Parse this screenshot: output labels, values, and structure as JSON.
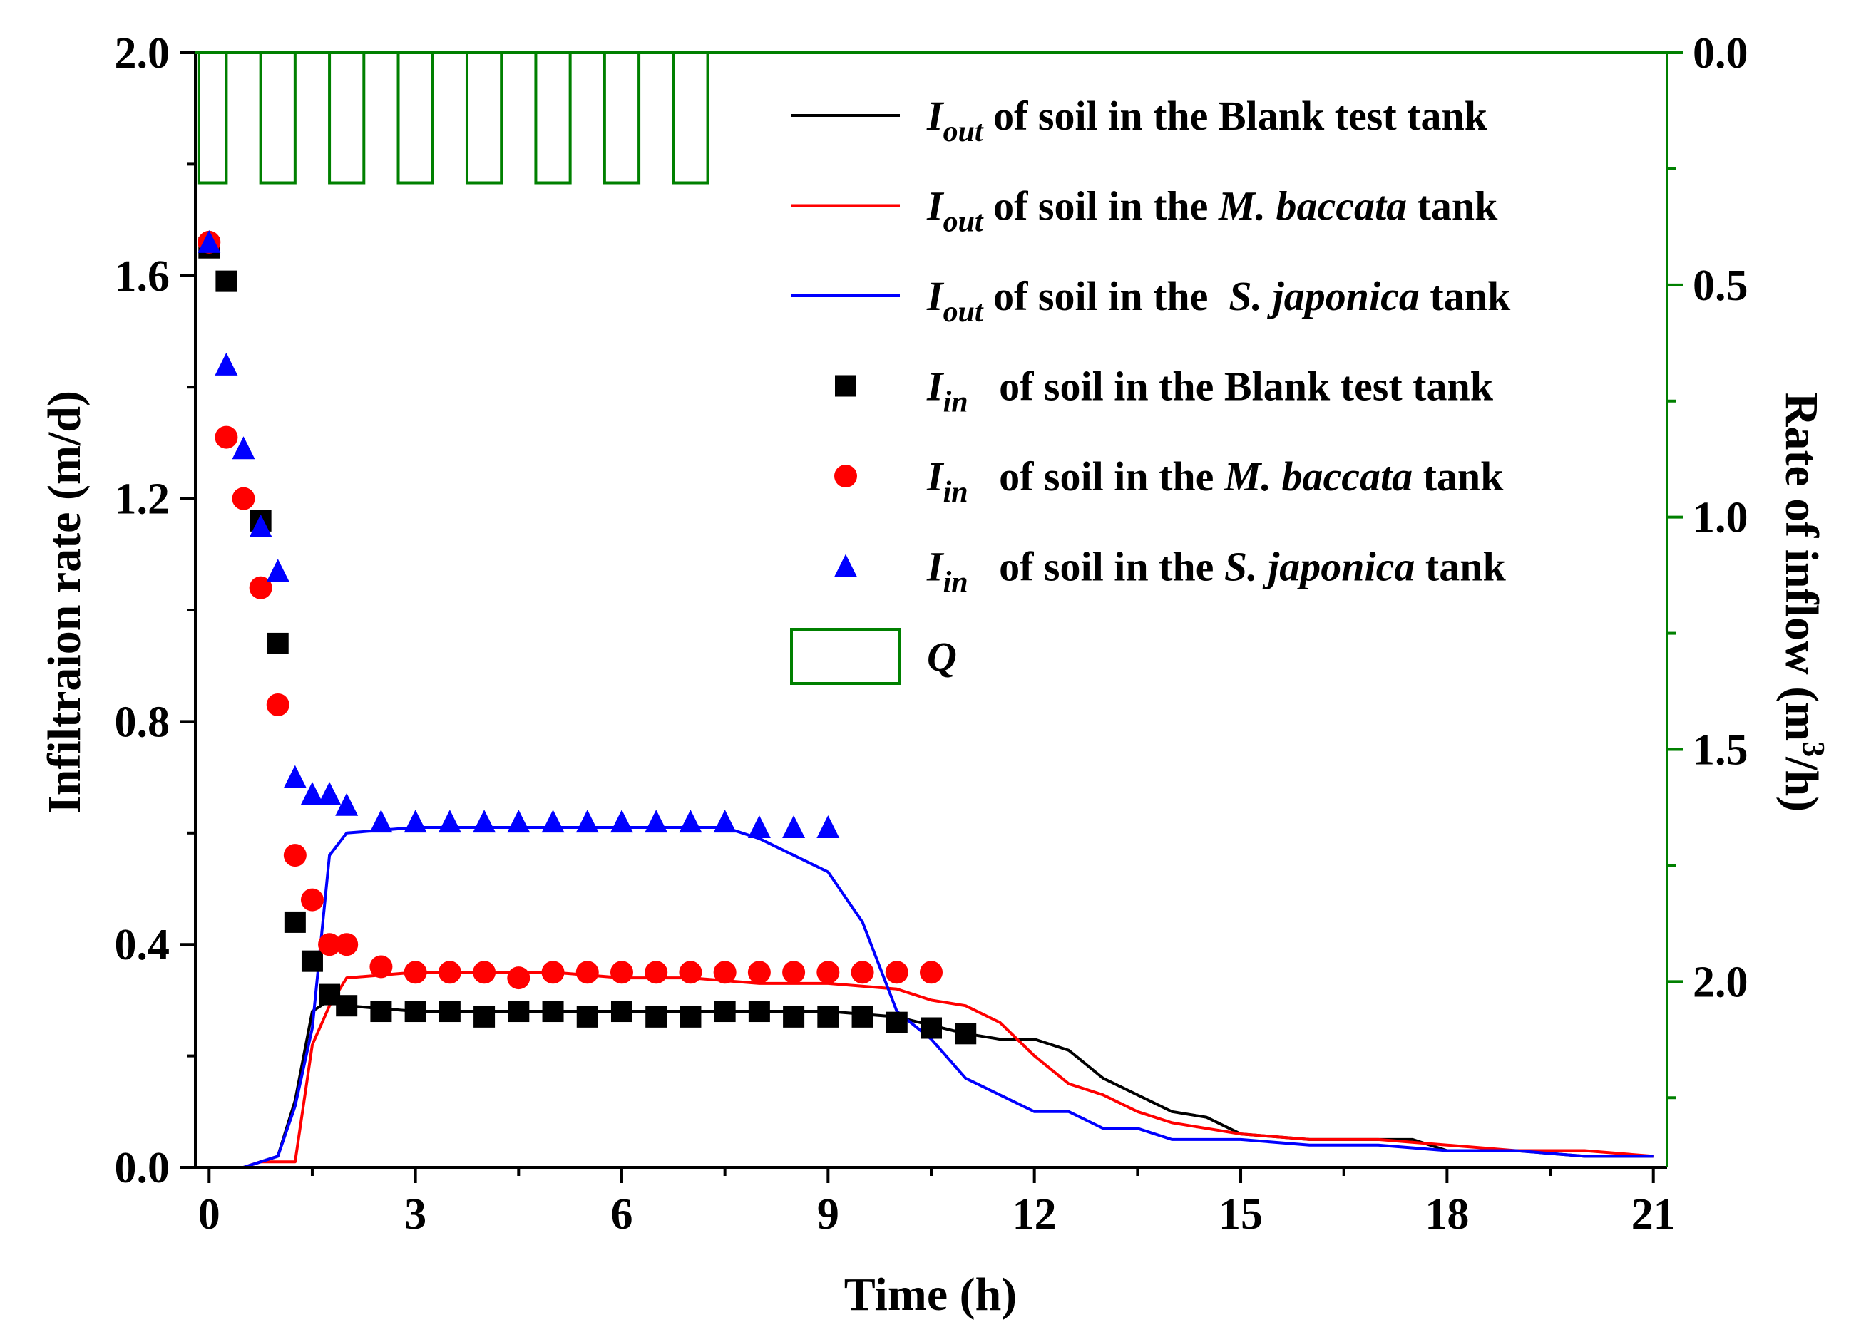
{
  "chart_data": {
    "type": "line+scatter (dual axis)",
    "xlabel": "Time (h)",
    "ylabel_left": "Infiltraion rate (m/d)",
    "ylabel_right_prefix": "Rate of inflow (m",
    "ylabel_right_sup": "3",
    "ylabel_right_suffix": "/h)",
    "xlim": [
      -0.2,
      21.2
    ],
    "ylim_left": [
      0.0,
      2.0
    ],
    "ylim_right": [
      0.0,
      2.4
    ],
    "right_axis_inverted": true,
    "x_ticks": [
      0,
      3,
      6,
      9,
      12,
      15,
      18,
      21
    ],
    "x_tick_labels": [
      "0",
      "3",
      "6",
      "9",
      "12",
      "15",
      "18",
      "21"
    ],
    "y_left_ticks": [
      0.0,
      0.4,
      0.8,
      1.2,
      1.6,
      2.0
    ],
    "y_left_tick_labels": [
      "0.0",
      "0.4",
      "0.8",
      "1.2",
      "1.6",
      "2.0"
    ],
    "y_right_ticks": [
      0.0,
      0.5,
      1.0,
      1.5,
      2.0
    ],
    "y_right_tick_labels": [
      "0.0",
      "0.5",
      "1.0",
      "1.5",
      "2.0"
    ],
    "colors": {
      "blank": "#000000",
      "baccata": "#ff0000",
      "japonica": "#0000ff",
      "Q": "#008000"
    },
    "lines": [
      {
        "name": "Iout Blank test tank",
        "color": "#000000",
        "x": [
          0.5,
          0.75,
          1.0,
          1.25,
          1.5,
          1.75,
          2,
          3,
          4,
          5,
          6,
          7,
          8,
          9,
          10,
          11,
          11.5,
          12,
          12.5,
          13,
          13.5,
          14,
          14.5,
          15,
          16,
          17,
          17.5,
          18,
          19,
          20,
          21
        ],
        "y": [
          0.0,
          0.01,
          0.02,
          0.12,
          0.28,
          0.3,
          0.29,
          0.28,
          0.28,
          0.28,
          0.28,
          0.28,
          0.28,
          0.28,
          0.27,
          0.24,
          0.23,
          0.23,
          0.21,
          0.16,
          0.13,
          0.1,
          0.09,
          0.06,
          0.05,
          0.05,
          0.05,
          0.03,
          0.03,
          0.02,
          0.02
        ]
      },
      {
        "name": "Iout M. baccata tank",
        "color": "#ff0000",
        "x": [
          0.5,
          0.75,
          1.0,
          1.25,
          1.5,
          1.75,
          2,
          3,
          4,
          5,
          6,
          7,
          8,
          9,
          10,
          10.5,
          11,
          11.5,
          12,
          12.5,
          13,
          13.5,
          14,
          14.5,
          15,
          16,
          17,
          18,
          19,
          20,
          21
        ],
        "y": [
          0.0,
          0.01,
          0.01,
          0.01,
          0.22,
          0.29,
          0.34,
          0.35,
          0.35,
          0.35,
          0.34,
          0.34,
          0.33,
          0.33,
          0.32,
          0.3,
          0.29,
          0.26,
          0.2,
          0.15,
          0.13,
          0.1,
          0.08,
          0.07,
          0.06,
          0.05,
          0.05,
          0.04,
          0.03,
          0.03,
          0.02
        ]
      },
      {
        "name": "Iout S. japonica tank",
        "color": "#0000ff",
        "x": [
          0.5,
          0.75,
          1.0,
          1.25,
          1.5,
          1.75,
          2,
          3,
          4,
          5,
          6,
          7,
          7.5,
          8,
          8.5,
          9,
          9.5,
          10,
          10.5,
          11,
          11.5,
          12,
          12.5,
          13,
          13.5,
          14,
          14.5,
          15,
          16,
          17,
          18,
          19,
          20,
          21
        ],
        "y": [
          0.0,
          0.01,
          0.02,
          0.11,
          0.25,
          0.56,
          0.6,
          0.61,
          0.61,
          0.61,
          0.61,
          0.61,
          0.61,
          0.59,
          0.56,
          0.53,
          0.44,
          0.28,
          0.23,
          0.16,
          0.13,
          0.1,
          0.1,
          0.07,
          0.07,
          0.05,
          0.05,
          0.05,
          0.04,
          0.04,
          0.03,
          0.03,
          0.02,
          0.02
        ]
      }
    ],
    "scatter": [
      {
        "name": "Iin Blank test tank",
        "marker": "square",
        "color": "#000000",
        "x": [
          0,
          0.25,
          0.75,
          1.0,
          1.25,
          1.5,
          1.75,
          2,
          2.5,
          3,
          3.5,
          4,
          4.5,
          5,
          5.5,
          6,
          6.5,
          7,
          7.5,
          8,
          8.5,
          9,
          9.5,
          10,
          10.5,
          11
        ],
        "y": [
          1.65,
          1.59,
          1.16,
          0.94,
          0.44,
          0.37,
          0.31,
          0.29,
          0.28,
          0.28,
          0.28,
          0.27,
          0.28,
          0.28,
          0.27,
          0.28,
          0.27,
          0.27,
          0.28,
          0.28,
          0.27,
          0.27,
          0.27,
          0.26,
          0.25,
          0.24
        ]
      },
      {
        "name": "Iin M. baccata tank",
        "marker": "circle",
        "color": "#ff0000",
        "x": [
          0,
          0.25,
          0.5,
          0.75,
          1.0,
          1.25,
          1.5,
          1.75,
          2,
          2.5,
          3,
          3.5,
          4,
          4.5,
          5,
          5.5,
          6,
          6.5,
          7,
          7.5,
          8,
          8.5,
          9,
          9.5,
          10,
          10.5
        ],
        "y": [
          1.66,
          1.31,
          1.2,
          1.04,
          0.83,
          0.56,
          0.48,
          0.4,
          0.4,
          0.36,
          0.35,
          0.35,
          0.35,
          0.34,
          0.35,
          0.35,
          0.35,
          0.35,
          0.35,
          0.35,
          0.35,
          0.35,
          0.35,
          0.35,
          0.35,
          0.35
        ]
      },
      {
        "name": "Iin S. japonica tank",
        "marker": "triangle",
        "color": "#0000ff",
        "x": [
          0,
          0.25,
          0.5,
          0.75,
          1.0,
          1.25,
          1.5,
          1.75,
          2,
          2.5,
          3,
          3.5,
          4,
          4.5,
          5,
          5.5,
          6,
          6.5,
          7,
          7.5,
          8,
          8.5,
          9
        ],
        "y": [
          1.66,
          1.44,
          1.29,
          1.15,
          1.07,
          0.7,
          0.67,
          0.67,
          0.65,
          0.62,
          0.62,
          0.62,
          0.62,
          0.62,
          0.62,
          0.62,
          0.62,
          0.62,
          0.62,
          0.62,
          0.61,
          0.61,
          0.61
        ]
      }
    ],
    "Q_bars": {
      "name": "Q",
      "color": "#008000",
      "axis": "right",
      "value": 0.28,
      "intervals": [
        [
          -0.15,
          0.25
        ],
        [
          0.75,
          1.25
        ],
        [
          1.75,
          2.25
        ],
        [
          2.75,
          3.25
        ],
        [
          3.75,
          4.25
        ],
        [
          4.75,
          5.25
        ],
        [
          5.75,
          6.25
        ],
        [
          6.75,
          7.25
        ]
      ]
    },
    "legend": [
      {
        "symbol": "line",
        "color": "#000000",
        "var": "I",
        "sub": "out",
        "text": " of soil in the ",
        "species": "",
        "tail": "Blank test tank"
      },
      {
        "symbol": "line",
        "color": "#ff0000",
        "var": "I",
        "sub": "out",
        "text": " of soil in the ",
        "species": "M. baccata",
        "tail": " tank"
      },
      {
        "symbol": "line",
        "color": "#0000ff",
        "var": "I",
        "sub": "out",
        "text": " of soil in the  ",
        "species": "S. japonica",
        "tail": " tank"
      },
      {
        "symbol": "square",
        "color": "#000000",
        "var": "I",
        "sub": "in",
        "text": "   of soil in the ",
        "species": "",
        "tail": "Blank test tank"
      },
      {
        "symbol": "circle",
        "color": "#ff0000",
        "var": "I",
        "sub": "in",
        "text": "   of soil in the ",
        "species": "M. baccata",
        "tail": " tank"
      },
      {
        "symbol": "triangle",
        "color": "#0000ff",
        "var": "I",
        "sub": "in",
        "text": "   of soil in the ",
        "species": "S. japonica",
        "tail": " tank"
      },
      {
        "symbol": "bar",
        "color": "#008000",
        "var": "Q",
        "sub": "",
        "text": "",
        "species": "",
        "tail": ""
      }
    ]
  }
}
